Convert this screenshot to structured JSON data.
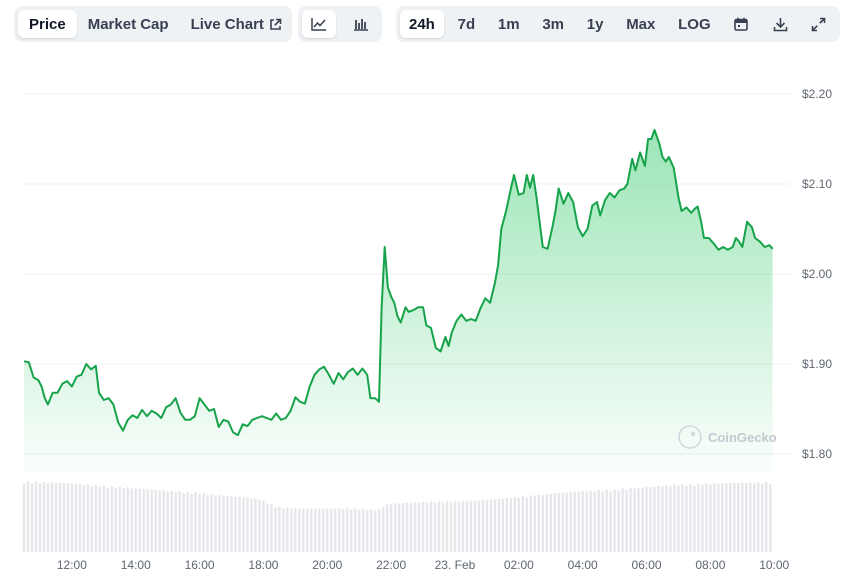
{
  "toolbar": {
    "metric_tabs": [
      {
        "label": "Price",
        "active": true
      },
      {
        "label": "Market Cap",
        "active": false
      },
      {
        "label": "Live Chart",
        "active": false
      }
    ],
    "chart_type_icons": [
      "line-chart-icon",
      "candlestick-chart-icon"
    ],
    "ranges": [
      {
        "label": "24h",
        "active": true
      },
      {
        "label": "7d",
        "active": false
      },
      {
        "label": "1m",
        "active": false
      },
      {
        "label": "3m",
        "active": false
      },
      {
        "label": "1y",
        "active": false
      },
      {
        "label": "Max",
        "active": false
      },
      {
        "label": "LOG",
        "active": false
      }
    ],
    "action_icons": [
      "calendar-icon",
      "download-icon",
      "fullscreen-icon"
    ]
  },
  "watermark": "CoinGecko",
  "colors": {
    "line": "#16a34a",
    "fill": "#22c55e",
    "volume": "#e5e7eb",
    "grid": "#eef0f3",
    "accent": "#111827"
  },
  "chart_data": {
    "type": "area",
    "title": "",
    "xlabel": "",
    "ylabel": "",
    "y_ticks": [
      "$2.20",
      "$2.10",
      "$2.00",
      "$1.90",
      "$1.80"
    ],
    "ylim": [
      1.78,
      2.2
    ],
    "x_ticks": [
      {
        "label": "12:00",
        "pos": 1.5
      },
      {
        "label": "14:00",
        "pos": 3.5
      },
      {
        "label": "16:00",
        "pos": 5.5
      },
      {
        "label": "18:00",
        "pos": 7.5
      },
      {
        "label": "20:00",
        "pos": 9.5
      },
      {
        "label": "22:00",
        "pos": 11.5
      },
      {
        "label": "23. Feb",
        "pos": 13.5
      },
      {
        "label": "02:00",
        "pos": 15.5
      },
      {
        "label": "04:00",
        "pos": 17.5
      },
      {
        "label": "06:00",
        "pos": 19.5
      },
      {
        "label": "08:00",
        "pos": 21.5
      },
      {
        "label": "10:00",
        "pos": 23.5
      }
    ],
    "x_range": [
      0,
      23.9
    ],
    "grid": true,
    "series": [
      {
        "points": [
          [
            0.0,
            1.903
          ],
          [
            0.15,
            1.902
          ],
          [
            0.3,
            1.885
          ],
          [
            0.45,
            1.882
          ],
          [
            0.55,
            1.875
          ],
          [
            0.65,
            1.862
          ],
          [
            0.75,
            1.855
          ],
          [
            0.9,
            1.868
          ],
          [
            1.05,
            1.868
          ],
          [
            1.2,
            1.878
          ],
          [
            1.35,
            1.881
          ],
          [
            1.5,
            1.875
          ],
          [
            1.65,
            1.886
          ],
          [
            1.8,
            1.888
          ],
          [
            1.95,
            1.9
          ],
          [
            2.1,
            1.894
          ],
          [
            2.25,
            1.898
          ],
          [
            2.35,
            1.868
          ],
          [
            2.5,
            1.86
          ],
          [
            2.65,
            1.862
          ],
          [
            2.8,
            1.855
          ],
          [
            2.95,
            1.835
          ],
          [
            3.1,
            1.826
          ],
          [
            3.25,
            1.838
          ],
          [
            3.4,
            1.843
          ],
          [
            3.55,
            1.84
          ],
          [
            3.7,
            1.849
          ],
          [
            3.85,
            1.842
          ],
          [
            4.0,
            1.848
          ],
          [
            4.15,
            1.845
          ],
          [
            4.3,
            1.84
          ],
          [
            4.45,
            1.852
          ],
          [
            4.6,
            1.855
          ],
          [
            4.75,
            1.862
          ],
          [
            4.9,
            1.846
          ],
          [
            5.05,
            1.838
          ],
          [
            5.2,
            1.838
          ],
          [
            5.35,
            1.842
          ],
          [
            5.5,
            1.862
          ],
          [
            5.65,
            1.855
          ],
          [
            5.8,
            1.848
          ],
          [
            5.95,
            1.85
          ],
          [
            6.1,
            1.83
          ],
          [
            6.25,
            1.838
          ],
          [
            6.4,
            1.836
          ],
          [
            6.55,
            1.824
          ],
          [
            6.7,
            1.821
          ],
          [
            6.85,
            1.833
          ],
          [
            7.0,
            1.831
          ],
          [
            7.15,
            1.838
          ],
          [
            7.3,
            1.84
          ],
          [
            7.45,
            1.842
          ],
          [
            7.6,
            1.84
          ],
          [
            7.75,
            1.838
          ],
          [
            7.9,
            1.845
          ],
          [
            8.05,
            1.838
          ],
          [
            8.2,
            1.84
          ],
          [
            8.35,
            1.848
          ],
          [
            8.5,
            1.863
          ],
          [
            8.65,
            1.858
          ],
          [
            8.8,
            1.856
          ],
          [
            8.95,
            1.875
          ],
          [
            9.1,
            1.888
          ],
          [
            9.25,
            1.894
          ],
          [
            9.4,
            1.897
          ],
          [
            9.55,
            1.888
          ],
          [
            9.7,
            1.878
          ],
          [
            9.85,
            1.89
          ],
          [
            10.0,
            1.883
          ],
          [
            10.15,
            1.891
          ],
          [
            10.3,
            1.895
          ],
          [
            10.45,
            1.888
          ],
          [
            10.6,
            1.895
          ],
          [
            10.75,
            1.888
          ],
          [
            10.85,
            1.862
          ],
          [
            11.0,
            1.862
          ],
          [
            11.12,
            1.858
          ],
          [
            11.2,
            1.962
          ],
          [
            11.3,
            2.03
          ],
          [
            11.4,
            1.985
          ],
          [
            11.5,
            1.975
          ],
          [
            11.6,
            1.968
          ],
          [
            11.7,
            1.953
          ],
          [
            11.8,
            1.946
          ],
          [
            11.95,
            1.963
          ],
          [
            12.05,
            1.958
          ],
          [
            12.2,
            1.96
          ],
          [
            12.35,
            1.963
          ],
          [
            12.5,
            1.963
          ],
          [
            12.6,
            1.943
          ],
          [
            12.75,
            1.94
          ],
          [
            12.9,
            1.918
          ],
          [
            13.05,
            1.914
          ],
          [
            13.2,
            1.93
          ],
          [
            13.3,
            1.92
          ],
          [
            13.4,
            1.935
          ],
          [
            13.55,
            1.948
          ],
          [
            13.7,
            1.955
          ],
          [
            13.85,
            1.948
          ],
          [
            14.0,
            1.95
          ],
          [
            14.15,
            1.948
          ],
          [
            14.3,
            1.962
          ],
          [
            14.45,
            1.973
          ],
          [
            14.6,
            1.968
          ],
          [
            14.75,
            1.99
          ],
          [
            14.85,
            2.01
          ],
          [
            14.95,
            2.05
          ],
          [
            15.1,
            2.07
          ],
          [
            15.25,
            2.095
          ],
          [
            15.35,
            2.11
          ],
          [
            15.5,
            2.088
          ],
          [
            15.65,
            2.09
          ],
          [
            15.75,
            2.11
          ],
          [
            15.85,
            2.096
          ],
          [
            15.95,
            2.11
          ],
          [
            16.05,
            2.086
          ],
          [
            16.15,
            2.058
          ],
          [
            16.25,
            2.03
          ],
          [
            16.4,
            2.028
          ],
          [
            16.55,
            2.052
          ],
          [
            16.65,
            2.07
          ],
          [
            16.75,
            2.095
          ],
          [
            16.9,
            2.078
          ],
          [
            17.05,
            2.09
          ],
          [
            17.2,
            2.08
          ],
          [
            17.35,
            2.052
          ],
          [
            17.5,
            2.042
          ],
          [
            17.65,
            2.05
          ],
          [
            17.8,
            2.076
          ],
          [
            17.95,
            2.08
          ],
          [
            18.05,
            2.065
          ],
          [
            18.2,
            2.082
          ],
          [
            18.35,
            2.09
          ],
          [
            18.5,
            2.085
          ],
          [
            18.65,
            2.093
          ],
          [
            18.8,
            2.095
          ],
          [
            18.9,
            2.1
          ],
          [
            19.05,
            2.128
          ],
          [
            19.15,
            2.115
          ],
          [
            19.3,
            2.135
          ],
          [
            19.45,
            2.12
          ],
          [
            19.55,
            2.15
          ],
          [
            19.65,
            2.15
          ],
          [
            19.75,
            2.16
          ],
          [
            19.9,
            2.145
          ],
          [
            20.0,
            2.13
          ],
          [
            20.1,
            2.125
          ],
          [
            20.2,
            2.13
          ],
          [
            20.35,
            2.118
          ],
          [
            20.5,
            2.085
          ],
          [
            20.6,
            2.07
          ],
          [
            20.75,
            2.074
          ],
          [
            20.9,
            2.068
          ],
          [
            21.0,
            2.072
          ],
          [
            21.1,
            2.075
          ],
          [
            21.2,
            2.06
          ],
          [
            21.3,
            2.04
          ],
          [
            21.45,
            2.04
          ],
          [
            21.6,
            2.034
          ],
          [
            21.75,
            2.027
          ],
          [
            21.9,
            2.03
          ],
          [
            22.05,
            2.027
          ],
          [
            22.2,
            2.03
          ],
          [
            22.3,
            2.04
          ],
          [
            22.4,
            2.036
          ],
          [
            22.5,
            2.03
          ],
          [
            22.65,
            2.058
          ],
          [
            22.8,
            2.052
          ],
          [
            22.9,
            2.04
          ],
          [
            23.05,
            2.036
          ],
          [
            23.2,
            2.03
          ],
          [
            23.35,
            2.032
          ],
          [
            23.45,
            2.028
          ]
        ]
      }
    ],
    "volume": {
      "ylim": [
        0,
        1
      ],
      "points": [
        [
          0.0,
          0.98
        ],
        [
          1.0,
          0.97
        ],
        [
          1.6,
          0.96
        ],
        [
          2.0,
          0.94
        ],
        [
          2.6,
          0.92
        ],
        [
          3.2,
          0.9
        ],
        [
          3.8,
          0.88
        ],
        [
          4.4,
          0.86
        ],
        [
          5.0,
          0.84
        ],
        [
          5.6,
          0.82
        ],
        [
          6.2,
          0.79
        ],
        [
          6.8,
          0.77
        ],
        [
          7.4,
          0.74
        ],
        [
          7.9,
          0.63
        ],
        [
          8.6,
          0.61
        ],
        [
          9.3,
          0.61
        ],
        [
          10.0,
          0.61
        ],
        [
          10.6,
          0.6
        ],
        [
          11.1,
          0.59
        ],
        [
          11.4,
          0.67
        ],
        [
          12.0,
          0.69
        ],
        [
          12.8,
          0.7
        ],
        [
          13.6,
          0.71
        ],
        [
          14.5,
          0.73
        ],
        [
          15.5,
          0.77
        ],
        [
          16.5,
          0.82
        ],
        [
          17.5,
          0.85
        ],
        [
          18.5,
          0.87
        ],
        [
          19.5,
          0.91
        ],
        [
          20.5,
          0.94
        ],
        [
          21.5,
          0.96
        ],
        [
          22.5,
          0.97
        ],
        [
          23.45,
          0.97
        ]
      ]
    }
  }
}
